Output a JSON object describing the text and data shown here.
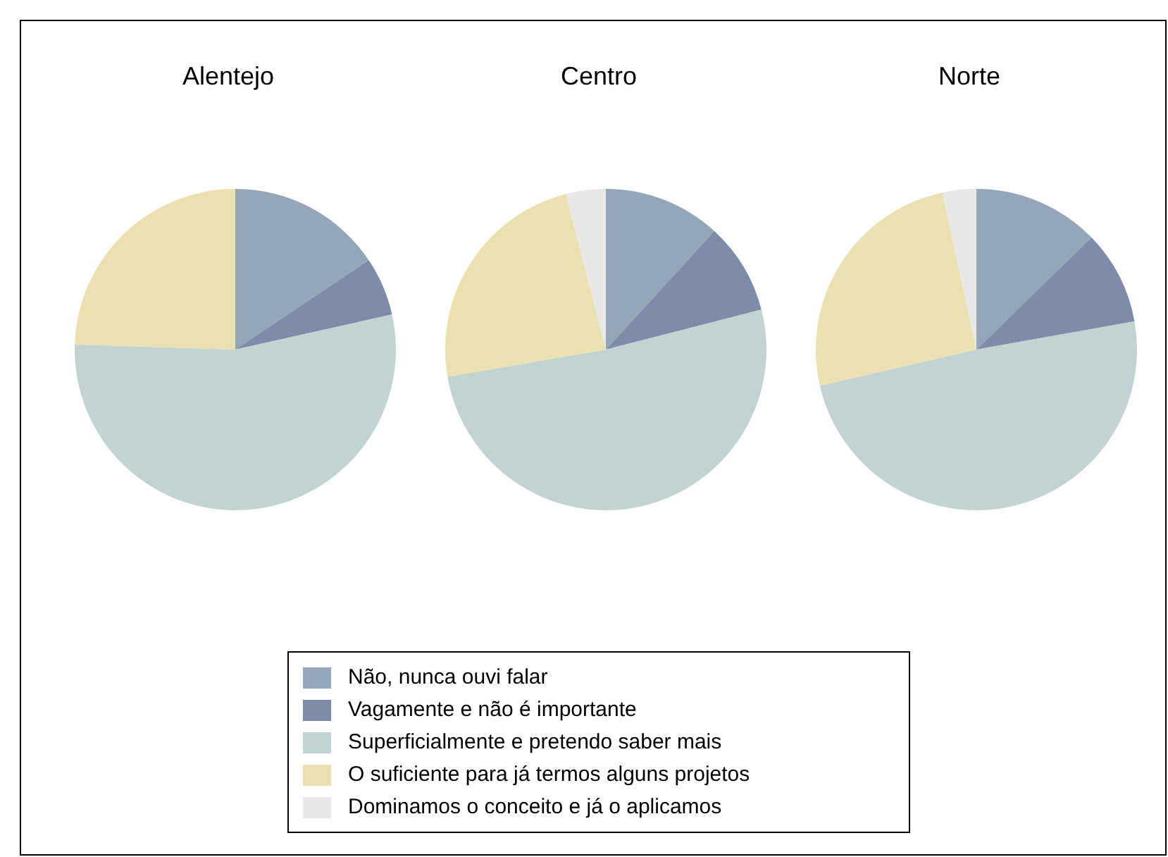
{
  "chart_data": {
    "type": "pie",
    "categories": [
      "Não, nunca ouvi falar",
      "Vagamente e não é importante",
      "Superficialmente e pretendo saber mais",
      "O suficiente para já termos alguns projetos",
      "Dominamos o conceito e já o aplicamos"
    ],
    "colors": [
      "#94a6b7",
      "#7f8ca9",
      "#c2d4d2",
      "#ebe0b0",
      "#e8e8e8"
    ],
    "legend": "bottom",
    "series": [
      {
        "name": "Alentejo",
        "values": [
          15.6,
          5.9,
          54,
          24.5,
          0
        ]
      },
      {
        "name": "Centro",
        "values": [
          11.8,
          9.2,
          51.3,
          23.7,
          4
        ]
      },
      {
        "name": "Norte",
        "values": [
          12.7,
          9.5,
          49.2,
          25.2,
          3.4
        ]
      }
    ]
  }
}
